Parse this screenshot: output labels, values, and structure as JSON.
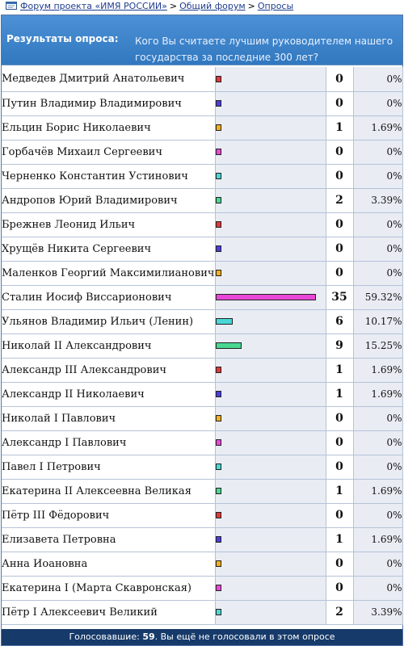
{
  "breadcrumb": {
    "items": [
      "Форум проекта «ИМЯ РОССИИ»",
      "Общий форум",
      "Опросы"
    ],
    "separator": ">"
  },
  "header": {
    "label": "Результаты опроса:",
    "question": "Кого Вы считаете лучшим руководителем нашего государства за последние 300 лет?"
  },
  "max_count": 35,
  "rows": [
    {
      "name": "Медведев Дмитрий Анатольевич",
      "count": "0",
      "percent": "0%",
      "color": "#e03838"
    },
    {
      "name": "Путин Владимир Владимирович",
      "count": "0",
      "percent": "0%",
      "color": "#4a3de0"
    },
    {
      "name": "Ельцин Борис Николаевич",
      "count": "1",
      "percent": "1.69%",
      "color": "#f2b01c"
    },
    {
      "name": "Горбачёв Михаил Сергеевич",
      "count": "0",
      "percent": "0%",
      "color": "#e848d8"
    },
    {
      "name": "Черненко Константин Устинович",
      "count": "0",
      "percent": "0%",
      "color": "#48d8d8"
    },
    {
      "name": "Андропов Юрий Владимирович",
      "count": "2",
      "percent": "3.39%",
      "color": "#48d890"
    },
    {
      "name": "Брежнев Леонид Ильич",
      "count": "0",
      "percent": "0%",
      "color": "#e03838"
    },
    {
      "name": "Хрущёв Никита Сергеевич",
      "count": "0",
      "percent": "0%",
      "color": "#4a3de0"
    },
    {
      "name": "Маленков Георгий Максимилианович",
      "count": "0",
      "percent": "0%",
      "color": "#f2b01c"
    },
    {
      "name": "Сталин Иосиф Виссарионович",
      "count": "35",
      "percent": "59.32%",
      "color": "#e848d8"
    },
    {
      "name": "Ульянов Владимир Ильич (Ленин)",
      "count": "6",
      "percent": "10.17%",
      "color": "#48d8d8"
    },
    {
      "name": "Николай II Александрович",
      "count": "9",
      "percent": "15.25%",
      "color": "#48d890"
    },
    {
      "name": "Александр III Александрович",
      "count": "1",
      "percent": "1.69%",
      "color": "#e03838"
    },
    {
      "name": "Александр II Николаевич",
      "count": "1",
      "percent": "1.69%",
      "color": "#4a3de0"
    },
    {
      "name": "Николай I Павлович",
      "count": "0",
      "percent": "0%",
      "color": "#f2b01c"
    },
    {
      "name": "Александр I Павлович",
      "count": "0",
      "percent": "0%",
      "color": "#e848d8"
    },
    {
      "name": "Павел I Петрович",
      "count": "0",
      "percent": "0%",
      "color": "#48d8d8"
    },
    {
      "name": "Екатерина II Алексеевна Великая",
      "count": "1",
      "percent": "1.69%",
      "color": "#48d890"
    },
    {
      "name": "Пётр III Фёдорович",
      "count": "0",
      "percent": "0%",
      "color": "#e03838"
    },
    {
      "name": "Елизавета Петровна",
      "count": "1",
      "percent": "1.69%",
      "color": "#4a3de0"
    },
    {
      "name": "Анна Иоановна",
      "count": "0",
      "percent": "0%",
      "color": "#f2b01c"
    },
    {
      "name": "Екатерина I (Марта Скавронская)",
      "count": "0",
      "percent": "0%",
      "color": "#e848d8"
    },
    {
      "name": "Пётр I Алексеевич Великий",
      "count": "2",
      "percent": "3.39%",
      "color": "#48d8d8"
    }
  ],
  "footer": {
    "prefix": "Голосовавшие:",
    "total": "59",
    "suffix": ". Вы ещё не голосовали в этом опросе"
  }
}
